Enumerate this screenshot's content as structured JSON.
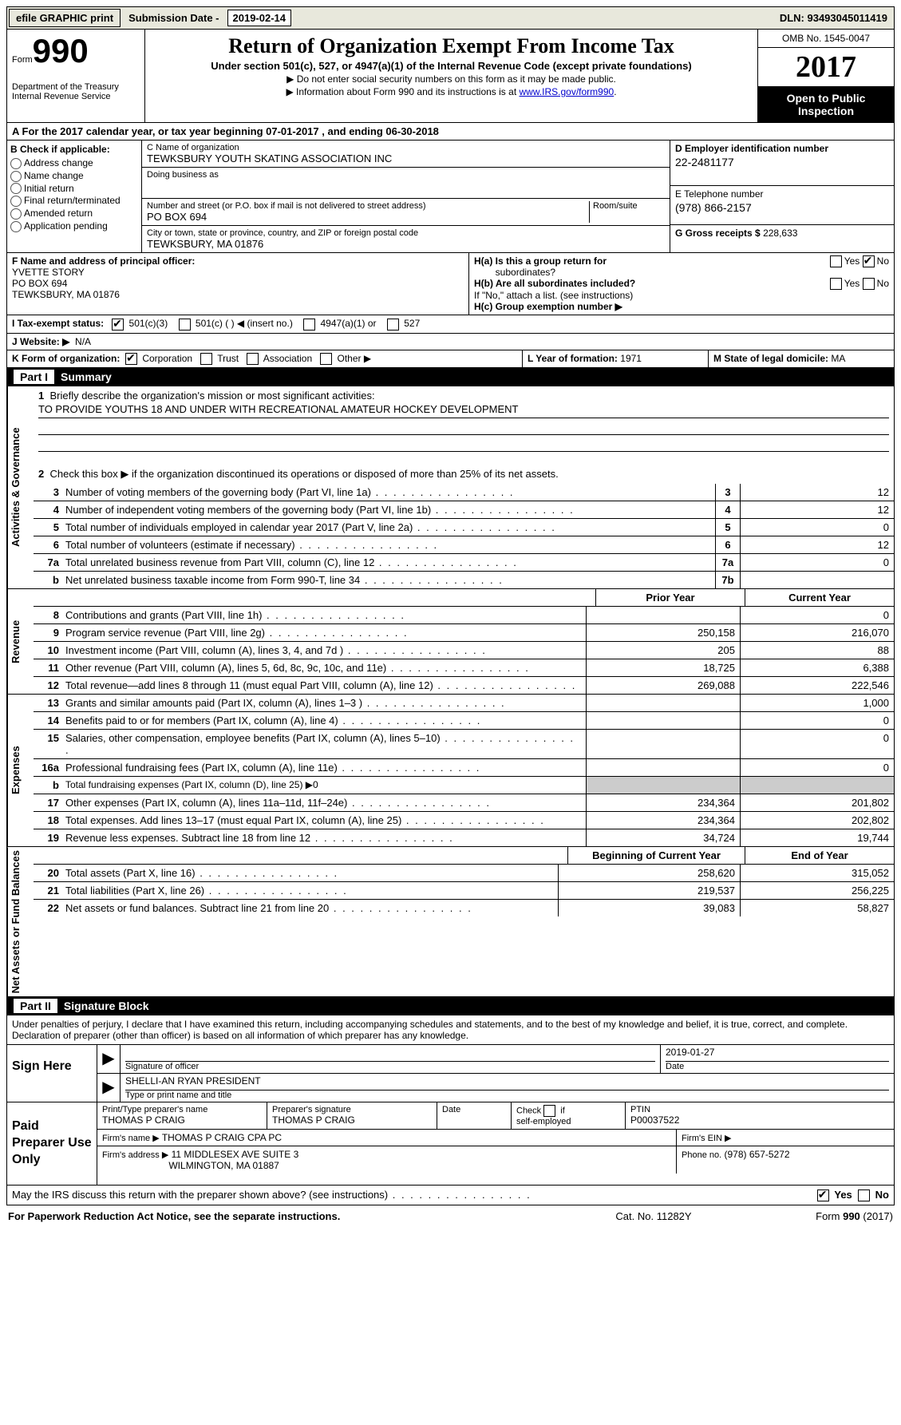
{
  "top": {
    "efile": "efile GRAPHIC print",
    "subLabel": "Submission Date -",
    "subDate": "2019-02-14",
    "dln": "DLN: 93493045011419"
  },
  "hdr": {
    "form": "Form",
    "num": "990",
    "dept1": "Department of the Treasury",
    "dept2": "Internal Revenue Service",
    "title": "Return of Organization Exempt From Income Tax",
    "sub": "Under section 501(c), 527, or 4947(a)(1) of the Internal Revenue Code (except private foundations)",
    "note1": "▶ Do not enter social security numbers on this form as it may be made public.",
    "note2": "▶ Information about Form 990 and its instructions is at ",
    "link": "www.IRS.gov/form990",
    "omb": "OMB No. 1545-0047",
    "year": "2017",
    "open1": "Open to Public",
    "open2": "Inspection"
  },
  "A": {
    "text": "A  For the 2017 calendar year, or tax year beginning 07-01-2017   , and ending 06-30-2018"
  },
  "B": {
    "lbl": "B Check if applicable:",
    "opts": [
      "Address change",
      "Name change",
      "Initial return",
      "Final return/terminated",
      "Amended return",
      "Application pending"
    ]
  },
  "C": {
    "nameLbl": "C Name of organization",
    "name": "TEWKSBURY YOUTH SKATING ASSOCIATION INC",
    "dbaLbl": "Doing business as",
    "dba": "",
    "addrLbl": "Number and street (or P.O. box if mail is not delivered to street address)",
    "roomLbl": "Room/suite",
    "addr": "PO BOX 694",
    "cityLbl": "City or town, state or province, country, and ZIP or foreign postal code",
    "city": "TEWKSBURY, MA  01876"
  },
  "D": {
    "lbl": "D Employer identification number",
    "val": "22-2481177"
  },
  "E": {
    "lbl": "E Telephone number",
    "val": "(978) 866-2157"
  },
  "G": {
    "lbl": "G Gross receipts $",
    "val": "228,633"
  },
  "F": {
    "lbl": "F  Name and address of principal officer:",
    "name": "YVETTE STORY",
    "addr1": "PO BOX 694",
    "addr2": "TEWKSBURY, MA  01876"
  },
  "H": {
    "a": "H(a)  Is this a group return for",
    "a2": "subordinates?",
    "b": "H(b)  Are all subordinates included?",
    "note": "If \"No,\" attach a list. (see instructions)",
    "c": "H(c)  Group exemption number ▶"
  },
  "I": {
    "lbl": "I   Tax-exempt status:",
    "o1": "501(c)(3)",
    "o2": "501(c) (  ) ◀ (insert no.)",
    "o3": "4947(a)(1) or",
    "o4": "527"
  },
  "J": {
    "lbl": "J   Website: ▶",
    "val": "N/A"
  },
  "K": {
    "lbl": "K Form of organization:",
    "o": [
      "Corporation",
      "Trust",
      "Association",
      "Other ▶"
    ]
  },
  "L": {
    "lbl": "L Year of formation:",
    "val": "1971"
  },
  "M": {
    "lbl": "M State of legal domicile:",
    "val": "MA"
  },
  "part1": {
    "hdr": "Part I",
    "title": "Summary",
    "v1": "Activities & Governance",
    "v2": "Revenue",
    "v3": "Expenses",
    "v4": "Net Assets or Fund Balances",
    "l1": "Briefly describe the organization's mission or most significant activities:",
    "mission": "TO PROVIDE YOUTHS 18 AND UNDER WITH RECREATIONAL AMATEUR HOCKEY DEVELOPMENT",
    "l2": "Check this box ▶        if the organization discontinued its operations or disposed of more than 25% of its net assets.",
    "lines": [
      {
        "n": "3",
        "t": "Number of voting members of the governing body (Part VI, line 1a)",
        "b": "3",
        "v": "12"
      },
      {
        "n": "4",
        "t": "Number of independent voting members of the governing body (Part VI, line 1b)",
        "b": "4",
        "v": "12"
      },
      {
        "n": "5",
        "t": "Total number of individuals employed in calendar year 2017 (Part V, line 2a)",
        "b": "5",
        "v": "0"
      },
      {
        "n": "6",
        "t": "Total number of volunteers (estimate if necessary)",
        "b": "6",
        "v": "12"
      },
      {
        "n": "7a",
        "t": "Total unrelated business revenue from Part VIII, column (C), line 12",
        "b": "7a",
        "v": "0"
      },
      {
        "n": "b",
        "t": "Net unrelated business taxable income from Form 990-T, line 34",
        "b": "7b",
        "v": ""
      }
    ],
    "pyr": "Prior Year",
    "cyr": "Current Year",
    "rev": [
      {
        "n": "8",
        "t": "Contributions and grants (Part VIII, line 1h)",
        "p": "",
        "c": "0"
      },
      {
        "n": "9",
        "t": "Program service revenue (Part VIII, line 2g)",
        "p": "250,158",
        "c": "216,070"
      },
      {
        "n": "10",
        "t": "Investment income (Part VIII, column (A), lines 3, 4, and 7d )",
        "p": "205",
        "c": "88"
      },
      {
        "n": "11",
        "t": "Other revenue (Part VIII, column (A), lines 5, 6d, 8c, 9c, 10c, and 11e)",
        "p": "18,725",
        "c": "6,388"
      },
      {
        "n": "12",
        "t": "Total revenue—add lines 8 through 11 (must equal Part VIII, column (A), line 12)",
        "p": "269,088",
        "c": "222,546"
      }
    ],
    "exp": [
      {
        "n": "13",
        "t": "Grants and similar amounts paid (Part IX, column (A), lines 1–3 )",
        "p": "",
        "c": "1,000"
      },
      {
        "n": "14",
        "t": "Benefits paid to or for members (Part IX, column (A), line 4)",
        "p": "",
        "c": "0"
      },
      {
        "n": "15",
        "t": "Salaries, other compensation, employee benefits (Part IX, column (A), lines 5–10)",
        "p": "",
        "c": "0"
      },
      {
        "n": "16a",
        "t": "Professional fundraising fees (Part IX, column (A), line 11e)",
        "p": "",
        "c": "0"
      },
      {
        "n": "b",
        "t": "Total fundraising expenses (Part IX, column (D), line 25) ▶0",
        "shade": true
      },
      {
        "n": "17",
        "t": "Other expenses (Part IX, column (A), lines 11a–11d, 11f–24e)",
        "p": "234,364",
        "c": "201,802"
      },
      {
        "n": "18",
        "t": "Total expenses. Add lines 13–17 (must equal Part IX, column (A), line 25)",
        "p": "234,364",
        "c": "202,802"
      },
      {
        "n": "19",
        "t": "Revenue less expenses. Subtract line 18 from line 12",
        "p": "34,724",
        "c": "19,744"
      }
    ],
    "bcy": "Beginning of Current Year",
    "eoy": "End of Year",
    "net": [
      {
        "n": "20",
        "t": "Total assets (Part X, line 16)",
        "p": "258,620",
        "c": "315,052"
      },
      {
        "n": "21",
        "t": "Total liabilities (Part X, line 26)",
        "p": "219,537",
        "c": "256,225"
      },
      {
        "n": "22",
        "t": "Net assets or fund balances. Subtract line 21 from line 20",
        "p": "39,083",
        "c": "58,827"
      }
    ]
  },
  "part2": {
    "hdr": "Part II",
    "title": "Signature Block",
    "decl": "Under penalties of perjury, I declare that I have examined this return, including accompanying schedules and statements, and to the best of my knowledge and belief, it is true, correct, and complete. Declaration of preparer (other than officer) is based on all information of which preparer has any knowledge.",
    "signHere": "Sign Here",
    "sigCap": "Signature of officer",
    "dateCap": "Date",
    "date": "2019-01-27",
    "officer": "SHELLI-AN RYAN PRESIDENT",
    "nameCap": "Type or print name and title",
    "paid": "Paid Preparer Use Only",
    "prepNameLbl": "Print/Type preparer's name",
    "prepName": "THOMAS P CRAIG",
    "prepSigLbl": "Preparer's signature",
    "prepSig": "THOMAS P CRAIG",
    "prepDateLbl": "Date",
    "selfLbl": "Check        if self-employed",
    "ptinLbl": "PTIN",
    "ptin": "P00037522",
    "firmNameLbl": "Firm's name    ▶",
    "firmName": "THOMAS P CRAIG CPA PC",
    "firmEinLbl": "Firm's EIN ▶",
    "firmAddrLbl": "Firm's address ▶",
    "firmAddr1": "11 MIDDLESEX AVE SUITE 3",
    "firmAddr2": "WILMINGTON, MA  01887",
    "phoneLbl": "Phone no.",
    "phone": "(978) 657-5272",
    "discuss": "May the IRS discuss this return with the preparer shown above? (see instructions)",
    "yes": "Yes",
    "no": "No"
  },
  "foot": {
    "l": "For Paperwork Reduction Act Notice, see the separate instructions.",
    "m": "Cat. No. 11282Y",
    "r": "Form 990 (2017)"
  }
}
